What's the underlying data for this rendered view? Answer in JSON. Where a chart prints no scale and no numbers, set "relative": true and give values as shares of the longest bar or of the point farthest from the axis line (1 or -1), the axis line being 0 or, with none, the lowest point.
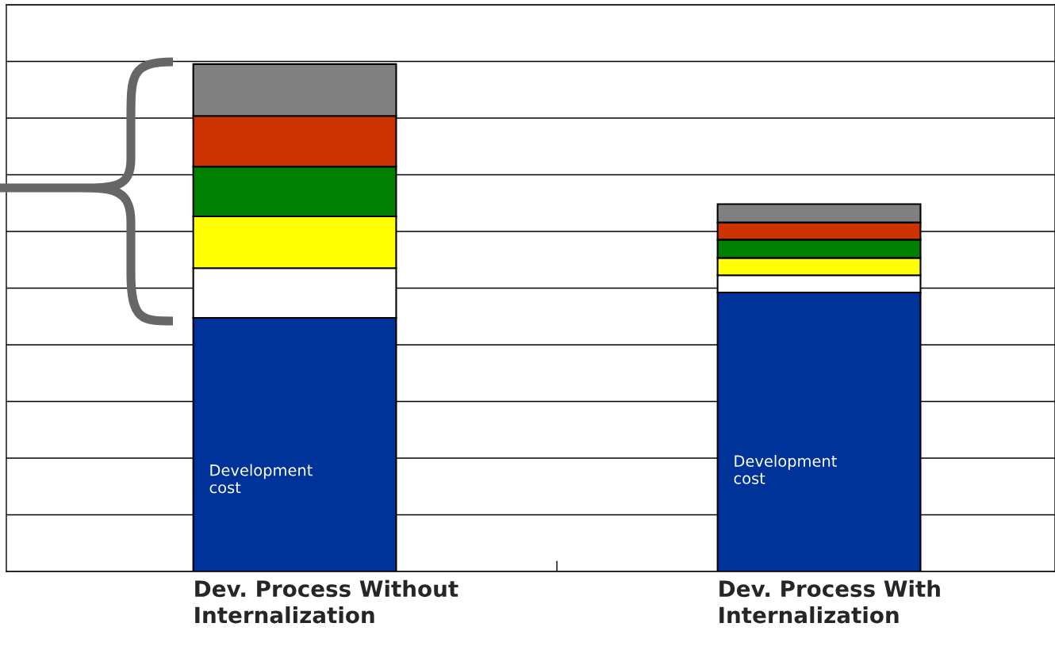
{
  "chart_data": {
    "type": "bar",
    "stacked": true,
    "relative": true,
    "grid": "y",
    "categories": [
      "Dev. Process Without Internalization",
      "Dev. Process With Internalization"
    ],
    "series": [
      {
        "name": "Development cost",
        "color": "#003399",
        "values": [
          0.5,
          0.55
        ]
      },
      {
        "color": "#ffffff",
        "values": [
          0.098,
          0.034
        ]
      },
      {
        "color": "#ffff00",
        "values": [
          0.102,
          0.034
        ]
      },
      {
        "color": "#008000",
        "values": [
          0.098,
          0.036
        ]
      },
      {
        "color": "#cc3300",
        "values": [
          0.1,
          0.034
        ]
      },
      {
        "color": "#808080",
        "values": [
          0.102,
          0.036
        ]
      }
    ]
  }
}
